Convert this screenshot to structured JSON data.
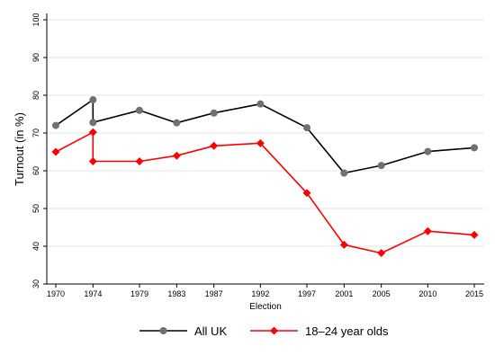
{
  "chart_data": {
    "type": "line",
    "title": "",
    "xlabel": "Election",
    "ylabel": "Turnout (in %)",
    "ylim": [
      30,
      100
    ],
    "y_ticks": [
      30,
      40,
      50,
      60,
      70,
      80,
      90,
      100
    ],
    "x_ticks": [
      1970,
      1974,
      1979,
      1983,
      1987,
      1992,
      1997,
      2001,
      2005,
      2010,
      2015
    ],
    "xlim": [
      1970,
      2015
    ],
    "grid": "horizontal",
    "legend_position": "bottom",
    "series": [
      {
        "name": "All UK",
        "color": "#000000",
        "marker_color": "#707070",
        "marker": "circle",
        "points": [
          {
            "x": 1970,
            "y": 72
          },
          {
            "x": 1974,
            "y": 78.8
          },
          {
            "x": 1974,
            "y": 72.8
          },
          {
            "x": 1979,
            "y": 76
          },
          {
            "x": 1983,
            "y": 72.7
          },
          {
            "x": 1987,
            "y": 75.3
          },
          {
            "x": 1992,
            "y": 77.7
          },
          {
            "x": 1997,
            "y": 71.4
          },
          {
            "x": 2001,
            "y": 59.4
          },
          {
            "x": 2005,
            "y": 61.4
          },
          {
            "x": 2010,
            "y": 65.1
          },
          {
            "x": 2015,
            "y": 66.1
          }
        ]
      },
      {
        "name": "18–24 year olds",
        "color": "#ff0000",
        "marker_color": "#ff0000",
        "marker": "diamond",
        "points": [
          {
            "x": 1970,
            "y": 65
          },
          {
            "x": 1974,
            "y": 70.2
          },
          {
            "x": 1974,
            "y": 62.5
          },
          {
            "x": 1979,
            "y": 62.5
          },
          {
            "x": 1983,
            "y": 64
          },
          {
            "x": 1987,
            "y": 66.6
          },
          {
            "x": 1992,
            "y": 67.3
          },
          {
            "x": 1997,
            "y": 54.1
          },
          {
            "x": 2001,
            "y": 40.4
          },
          {
            "x": 2005,
            "y": 38.2
          },
          {
            "x": 2010,
            "y": 44
          },
          {
            "x": 2015,
            "y": 43
          }
        ]
      }
    ]
  }
}
